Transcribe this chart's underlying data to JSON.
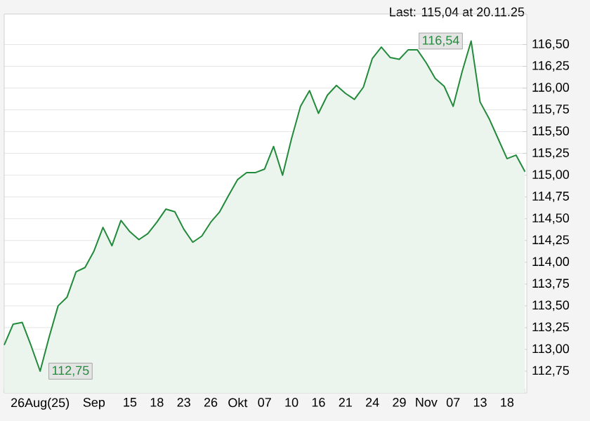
{
  "chart_data": {
    "type": "area",
    "title": "Last: 115,04 at 20.11.25",
    "categories": [
      null,
      null,
      null,
      null,
      "26Aug(25)",
      null,
      null,
      null,
      null,
      null,
      "Sep",
      null,
      null,
      null,
      "15",
      null,
      null,
      "18",
      null,
      null,
      "23",
      null,
      null,
      "26",
      null,
      null,
      "Okt",
      null,
      null,
      "07",
      null,
      null,
      "10",
      null,
      null,
      "16",
      null,
      null,
      "21",
      null,
      null,
      "24",
      null,
      null,
      "29",
      null,
      null,
      "Nov",
      null,
      null,
      "07",
      null,
      null,
      "13",
      null,
      null,
      "18",
      null,
      null
    ],
    "series": [
      {
        "color": "#228b3b",
        "values": [
          113.05,
          113.29,
          113.31,
          113.04,
          112.75,
          113.14,
          113.5,
          113.6,
          113.89,
          113.94,
          114.13,
          114.4,
          114.19,
          114.48,
          114.35,
          114.26,
          114.33,
          114.46,
          114.61,
          114.58,
          114.38,
          114.23,
          114.3,
          114.46,
          114.58,
          114.77,
          114.95,
          115.03,
          115.03,
          115.07,
          115.33,
          115.0,
          115.42,
          115.79,
          115.97,
          115.71,
          115.92,
          116.03,
          115.94,
          115.87,
          116.01,
          116.34,
          116.47,
          116.35,
          116.33,
          116.44,
          116.44,
          116.29,
          116.11,
          116.02,
          115.79,
          116.19,
          116.54,
          115.84,
          115.65,
          115.42,
          115.19,
          115.23,
          115.04
        ]
      }
    ],
    "ylim": [
      112.5,
      116.85
    ],
    "yticks": [
      {
        "value": 112.75,
        "label": "112,75"
      },
      {
        "value": 113.0,
        "label": "113,00"
      },
      {
        "value": 113.25,
        "label": "113,25"
      },
      {
        "value": 113.5,
        "label": "113,50"
      },
      {
        "value": 113.75,
        "label": "113,75"
      },
      {
        "value": 114.0,
        "label": "114,00"
      },
      {
        "value": 114.25,
        "label": "114,25"
      },
      {
        "value": 114.5,
        "label": "114,50"
      },
      {
        "value": 114.75,
        "label": "114,75"
      },
      {
        "value": 115.0,
        "label": "115,00"
      },
      {
        "value": 115.25,
        "label": "115,25"
      },
      {
        "value": 115.5,
        "label": "115,50"
      },
      {
        "value": 115.75,
        "label": "115,75"
      },
      {
        "value": 116.0,
        "label": "116,00"
      },
      {
        "value": 116.25,
        "label": "116,25"
      },
      {
        "value": 116.5,
        "label": "116,50"
      }
    ],
    "annotations": [
      {
        "text": "116,54",
        "y": 116.54
      },
      {
        "text": "112,75",
        "y": 112.75
      }
    ],
    "grid": "y"
  }
}
